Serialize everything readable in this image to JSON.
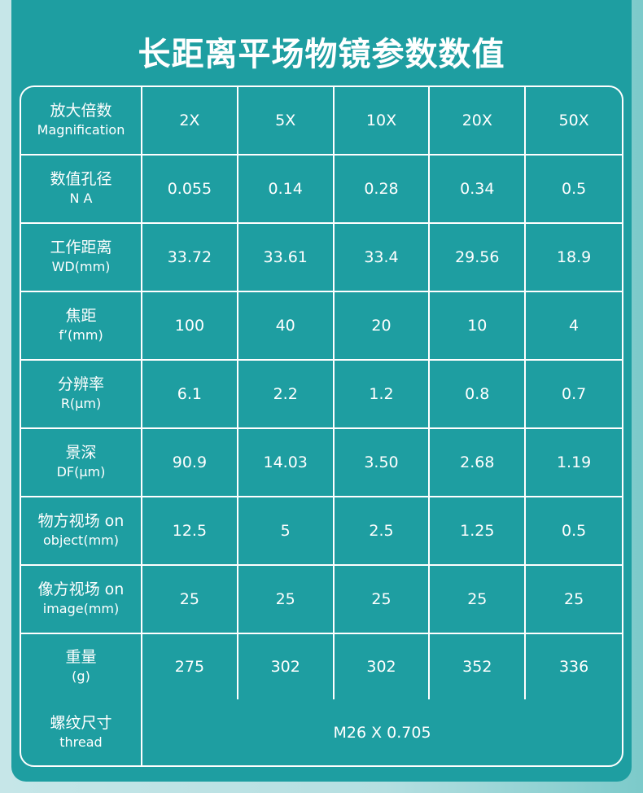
{
  "title": "长距离平场物镜参数数值",
  "rows": [
    {
      "cn": "放大倍数",
      "en": "Magnification",
      "values": [
        "2X",
        "5X",
        "10X",
        "20X",
        "50X"
      ]
    },
    {
      "cn": "数值孔径",
      "en": "N  A",
      "values": [
        "0.055",
        "0.14",
        "0.28",
        "0.34",
        "0.5"
      ]
    },
    {
      "cn": "工作距离",
      "en": "WD(mm)",
      "values": [
        "33.72",
        "33.61",
        "33.4",
        "29.56",
        "18.9"
      ]
    },
    {
      "cn": "焦距",
      "en": "f’(mm)",
      "values": [
        "100",
        "40",
        "20",
        "10",
        "4"
      ]
    },
    {
      "cn": "分辨率",
      "en": "R(μm)",
      "values": [
        "6.1",
        "2.2",
        "1.2",
        "0.8",
        "0.7"
      ]
    },
    {
      "cn": "景深",
      "en": "DF(μm)",
      "values": [
        "90.9",
        "14.03",
        "3.50",
        "2.68",
        "1.19"
      ]
    },
    {
      "cn": "物方视场 on",
      "en": "object(mm)",
      "values": [
        "12.5",
        "5",
        "2.5",
        "1.25",
        "0.5"
      ]
    },
    {
      "cn": "像方视场 on",
      "en": "image(mm)",
      "values": [
        "25",
        "25",
        "25",
        "25",
        "25"
      ]
    },
    {
      "cn": "重量",
      "en": "(g)",
      "values": [
        "275",
        "302",
        "302",
        "352",
        "336"
      ]
    }
  ],
  "thread": {
    "cn": "螺纹尺寸",
    "en": "thread",
    "value": "M26 X 0.705"
  }
}
